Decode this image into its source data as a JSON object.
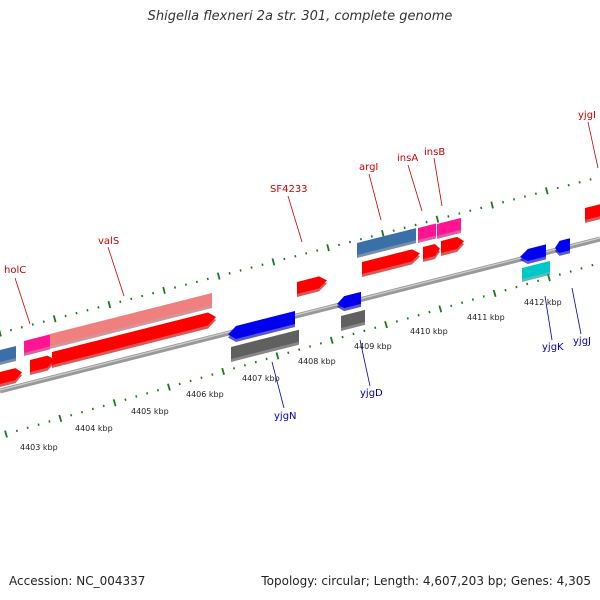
{
  "title": "Shigella flexneri 2a str. 301, complete genome",
  "footer": {
    "accession": "Accession: NC_004337",
    "summary": "Topology: circular; Length: 4,607,203 bp; Genes: 4,305"
  },
  "colors": {
    "forward_label": "#cc0000",
    "reverse_label": "#0000aa",
    "tick": "#1a7a1a",
    "backbone": "#888888",
    "cds_forward": "#ff0000",
    "cds_reverse": "#0000ee",
    "rna": "#3a6fa8",
    "trna": "#ff1493",
    "pseudo": "#f08080",
    "gray": "#606060",
    "cyan": "#00c8c8"
  },
  "scale": {
    "labels": [
      "4403 kbp",
      "4404 kbp",
      "4405 kbp",
      "4406 kbp",
      "4407 kbp",
      "4408 kbp",
      "4409 kbp",
      "4410 kbp",
      "4411 kbp",
      "4412 kbp"
    ]
  },
  "forward_genes": [
    "holC",
    "valS",
    "SF4233",
    "argI",
    "insA",
    "insB",
    "yjgI"
  ],
  "reverse_genes": [
    "yjgN",
    "yjgD",
    "yjgK",
    "yjgJ"
  ]
}
